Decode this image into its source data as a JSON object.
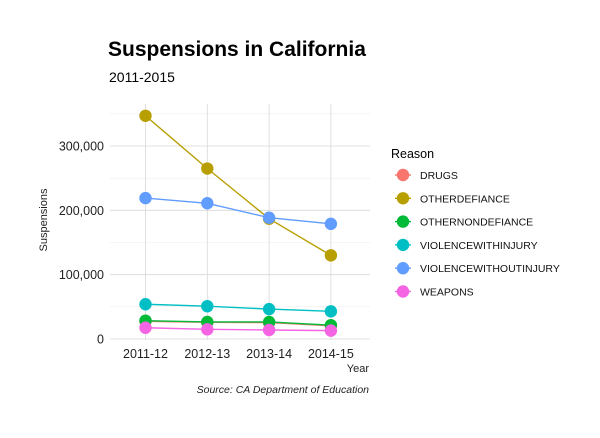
{
  "chart_data": {
    "type": "line",
    "title": "Suspensions in California",
    "subtitle": "2011-2015",
    "caption": "Source: CA Department of Education",
    "xlabel": "Year",
    "ylabel": "Suspensions",
    "categories": [
      "2011-12",
      "2012-13",
      "2013-14",
      "2014-15"
    ],
    "ylim": [
      0,
      360000
    ],
    "yticks": [
      0,
      100000,
      200000,
      300000
    ],
    "ytick_labels": [
      "0",
      "100,000",
      "200,000",
      "300,000"
    ],
    "grid": true,
    "legend_title": "Reason",
    "legend_position": "right",
    "series": [
      {
        "name": "DRUGS",
        "color": "#F8766D",
        "values": [
          27500,
          26000,
          25500,
          20500
        ]
      },
      {
        "name": "OTHERDEFIANCE",
        "color": "#B79F00",
        "values": [
          347000,
          265000,
          187000,
          130000
        ]
      },
      {
        "name": "OTHERNONDEFIANCE",
        "color": "#00BA38",
        "values": [
          28500,
          26500,
          26500,
          21500
        ]
      },
      {
        "name": "VIOLENCEWITHINJURY",
        "color": "#00BFC4",
        "values": [
          54000,
          51000,
          46500,
          43000
        ]
      },
      {
        "name": "VIOLENCEWITHOUTINJURY",
        "color": "#619CFF",
        "values": [
          219000,
          211000,
          188500,
          179000
        ]
      },
      {
        "name": "WEAPONS",
        "color": "#F564E3",
        "values": [
          17500,
          15000,
          14000,
          13000
        ]
      }
    ]
  }
}
